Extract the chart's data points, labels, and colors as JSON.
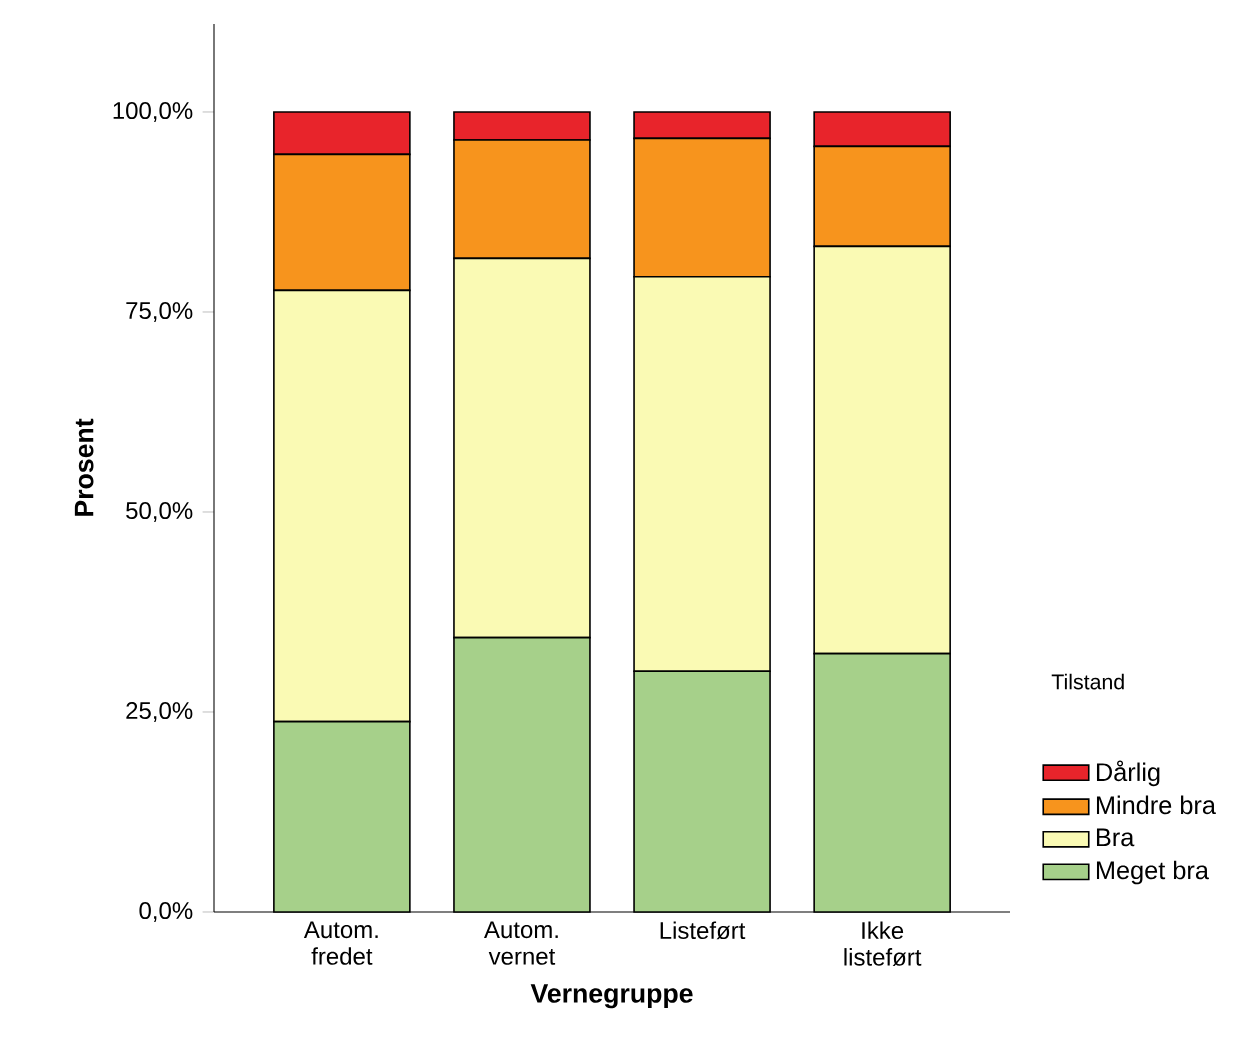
{
  "chart_data": {
    "type": "bar",
    "stacked": true,
    "xlabel": "Vernegruppe",
    "ylabel": "Prosent",
    "legend_title": "Tilstand",
    "legend": "right",
    "categories": [
      "Autom. fredet",
      "Autom. vernet",
      "Listeført",
      "Ikke listeført"
    ],
    "series": [
      {
        "name": "Meget bra",
        "color": "#a6d08a",
        "values": [
          23.8,
          34.3,
          30.1,
          32.3
        ]
      },
      {
        "name": "Bra",
        "color": "#fafab4",
        "values": [
          53.9,
          47.4,
          49.3,
          50.9
        ]
      },
      {
        "name": "Mindre bra",
        "color": "#f7941d",
        "values": [
          17.0,
          14.8,
          17.3,
          12.5
        ]
      },
      {
        "name": "Dårlig",
        "color": "#e8242b",
        "values": [
          5.3,
          3.5,
          3.3,
          4.3
        ]
      }
    ],
    "ylim": [
      0,
      111
    ],
    "yticks": [
      {
        "value": 0,
        "label": "0,0%"
      },
      {
        "value": 25,
        "label": "25,0%"
      },
      {
        "value": 50,
        "label": "50,0%"
      },
      {
        "value": 75,
        "label": "75,0%"
      },
      {
        "value": 100,
        "label": "100,0%"
      }
    ]
  }
}
